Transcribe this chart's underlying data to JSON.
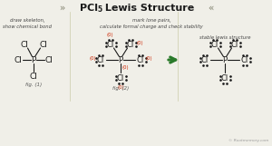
{
  "title": "PCl",
  "title_sub": "5",
  "title_rest": " Lewis Structure",
  "background_color": "#f0efe8",
  "title_color": "#1a1a1a",
  "subtitle_left": "draw skeleton,\nshow chemical bond",
  "subtitle_right": "mark lone pairs,\ncalculate formal charge and check stability",
  "stable_label": "stable lewis structure",
  "fig1_label": "fig. (1)",
  "fig2_label": "fig. (2)",
  "copyright": "© Rootmemory.com",
  "zero_color": "#cc2200",
  "atom_color": "#1a1a1a",
  "arrow_color": "#2a7a2a",
  "bond_color": "#1a1a1a",
  "dot_color": "#1a1a1a",
  "sep_color": "#ccccaa",
  "chevron_color": "#999988"
}
